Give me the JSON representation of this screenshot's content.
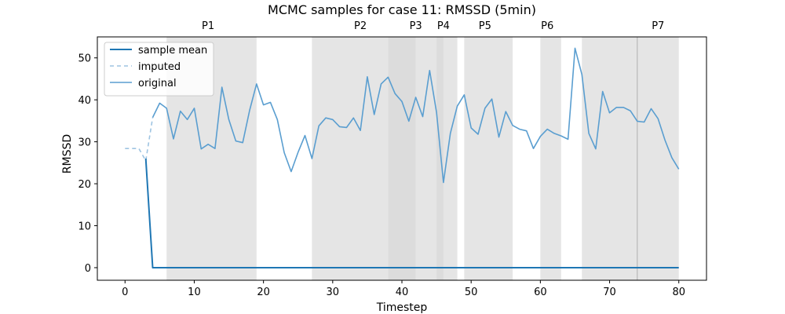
{
  "chart_data": {
    "type": "line",
    "title": "MCMC samples for case 11: RMSSD (5min)",
    "xlabel": "Timestep",
    "ylabel": "RMSSD",
    "xlim": [
      -4,
      84
    ],
    "ylim": [
      -3,
      55
    ],
    "xticks": [
      0,
      10,
      20,
      30,
      40,
      50,
      60,
      70,
      80
    ],
    "yticks": [
      0,
      10,
      20,
      30,
      40,
      50
    ],
    "grid": false,
    "legend_position": "top-left",
    "colors": {
      "sample_mean": "#1f77b4",
      "imputed": "#9ec4e2",
      "original": "#5a9ed0",
      "phase_band": "#d0d0d0"
    },
    "series": [
      {
        "name": "sample mean",
        "style": "solid",
        "x": [
          3,
          4,
          80
        ],
        "y": [
          26,
          0,
          0
        ]
      },
      {
        "name": "imputed",
        "style": "dashed",
        "x": [
          0,
          1,
          2,
          3,
          4
        ],
        "y": [
          28.4,
          28.4,
          28.4,
          25.5,
          35.8
        ]
      },
      {
        "name": "original",
        "style": "solid",
        "x": [
          4,
          5,
          6,
          7,
          8,
          9,
          10,
          11,
          12,
          13,
          14,
          15,
          16,
          17,
          18,
          19,
          20,
          21,
          22,
          23,
          24,
          25,
          26,
          27,
          28,
          29,
          30,
          31,
          32,
          33,
          34,
          35,
          36,
          37,
          38,
          39,
          40,
          41,
          42,
          43,
          44,
          45,
          46,
          47,
          48,
          49,
          50,
          51,
          52,
          53,
          54,
          55,
          56,
          57,
          58,
          59,
          60,
          61,
          62,
          63,
          64,
          65,
          66,
          67,
          68,
          69,
          70,
          71,
          72,
          73,
          74,
          75,
          76,
          77,
          78,
          79,
          80
        ],
        "y": [
          35.8,
          39.2,
          38,
          30.7,
          37.3,
          35.3,
          38,
          28.3,
          29.4,
          28.4,
          43,
          35.3,
          30.2,
          29.8,
          37.5,
          43.8,
          38.8,
          39.4,
          35.3,
          27.4,
          22.9,
          27.5,
          31.5,
          26,
          33.8,
          35.7,
          35.3,
          33.6,
          33.4,
          35.7,
          32.7,
          45.5,
          36.5,
          43.8,
          45.4,
          41.5,
          39.6,
          34.9,
          40.6,
          36,
          47,
          37,
          20.3,
          32,
          38.5,
          41.2,
          33.3,
          31.8,
          38,
          40.2,
          31.1,
          37.2,
          33.9,
          33,
          32.6,
          28.4,
          31.3,
          33,
          32,
          31.4,
          30.6,
          52.3,
          46,
          32,
          28.3,
          42,
          36.9,
          38.2,
          38.2,
          37.4,
          34.9,
          34.7,
          37.9,
          35.5,
          30.4,
          26.2,
          23.5
        ]
      }
    ],
    "phases": [
      {
        "label": "P1",
        "start": 6,
        "end": 19
      },
      {
        "label": "P2",
        "start": 27,
        "end": 42
      },
      {
        "label": "P3",
        "start": 38,
        "end": 48
      },
      {
        "label": "P4",
        "start": 45,
        "end": 46
      },
      {
        "label": "P5",
        "start": 49,
        "end": 56
      },
      {
        "label": "P6",
        "start": 60,
        "end": 63
      },
      {
        "label": "P7",
        "start": 66,
        "end": 80
      }
    ],
    "phase_label_positions": [
      {
        "label": "P1",
        "x": 12
      },
      {
        "label": "P2",
        "x": 34
      },
      {
        "label": "P3",
        "x": 42
      },
      {
        "label": "P4",
        "x": 46
      },
      {
        "label": "P5",
        "x": 52
      },
      {
        "label": "P6",
        "x": 61
      },
      {
        "label": "P7",
        "x": 77
      }
    ],
    "extra_shading": [
      {
        "start": 66,
        "end": 74
      },
      {
        "start": 74,
        "end": 80
      }
    ]
  }
}
